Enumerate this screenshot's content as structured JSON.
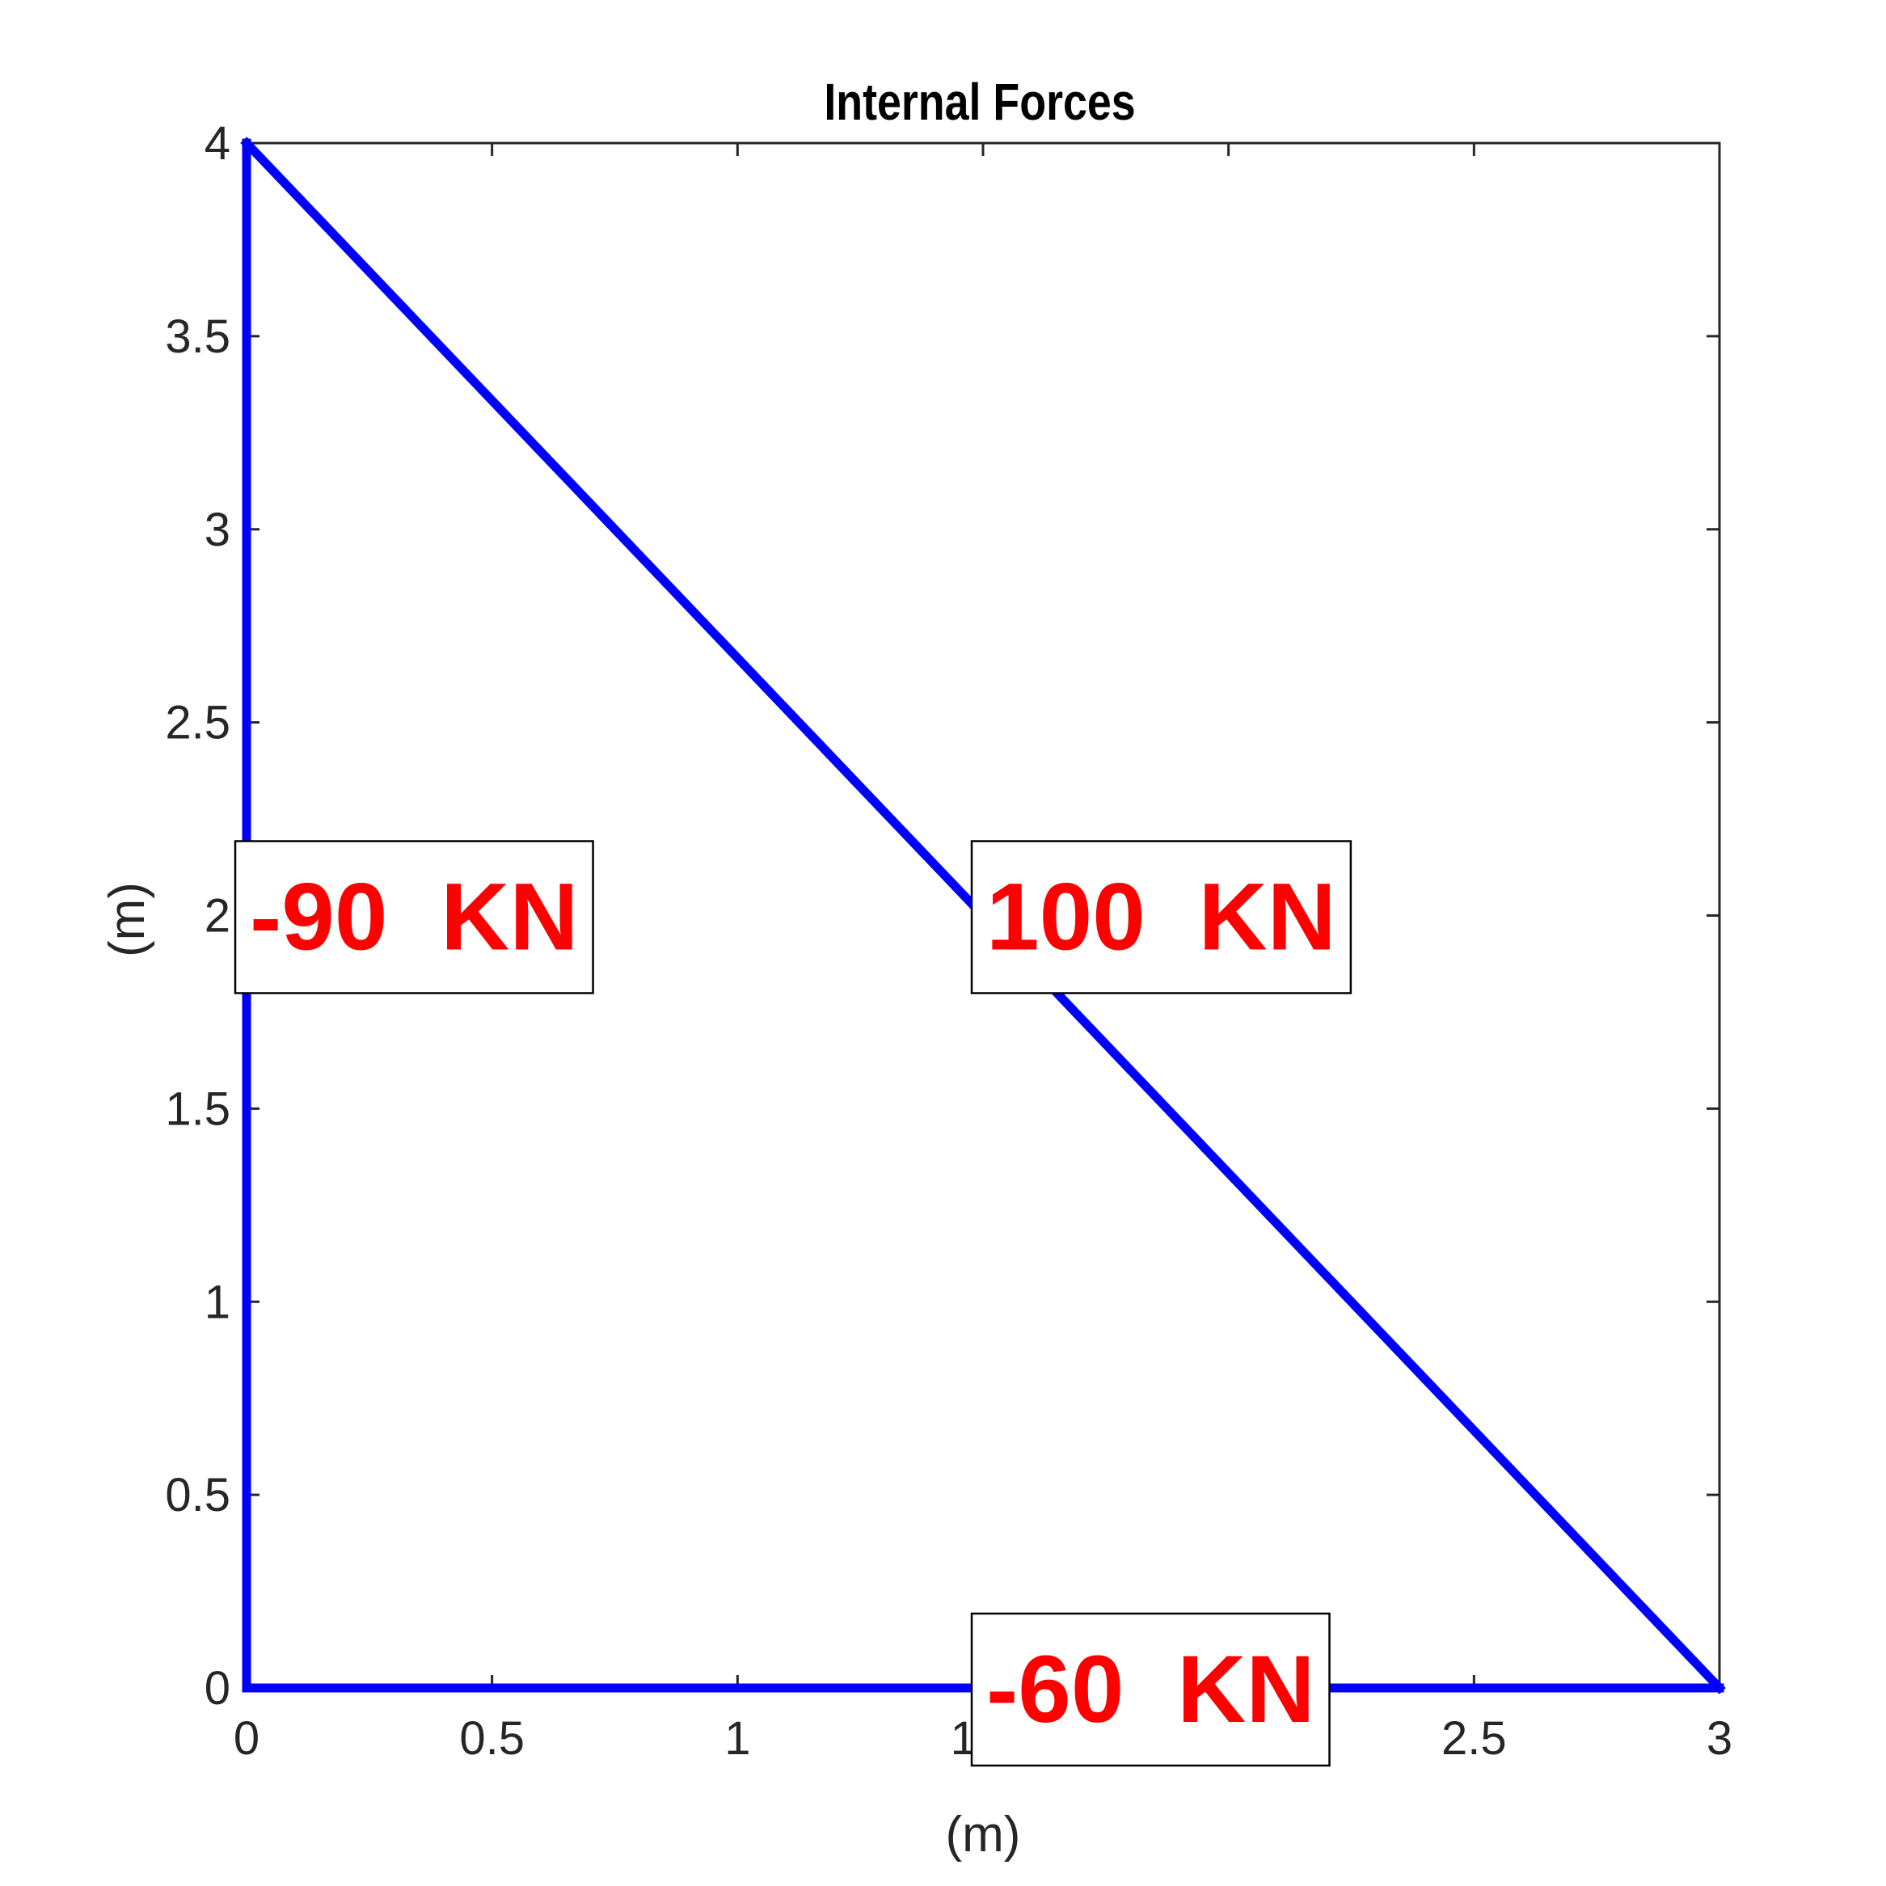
{
  "chart_data": {
    "type": "line",
    "title": "Internal Forces",
    "xlabel": "(m)",
    "ylabel": "(m)",
    "xlim": [
      0,
      3
    ],
    "ylim": [
      0,
      4
    ],
    "xticks": [
      0,
      0.5,
      1,
      1.5,
      2,
      2.5,
      3
    ],
    "xtick_labels": [
      "0",
      "0.5",
      "1",
      "1.5",
      "2",
      "2.5",
      "3"
    ],
    "yticks": [
      0,
      0.5,
      1,
      1.5,
      2,
      2.5,
      3,
      3.5,
      4
    ],
    "ytick_labels": [
      "0",
      "0.5",
      "1",
      "1.5",
      "2",
      "2.5",
      "3",
      "3.5",
      "4"
    ],
    "grid": false,
    "members": [
      {
        "x": [
          0,
          0
        ],
        "y": [
          0,
          4
        ]
      },
      {
        "x": [
          0,
          3
        ],
        "y": [
          4,
          0
        ]
      },
      {
        "x": [
          0,
          3
        ],
        "y": [
          0,
          0
        ]
      }
    ],
    "annotations": [
      {
        "text": "-90  KN",
        "x": 0,
        "y": 2
      },
      {
        "text": "100  KN",
        "x": 1.5,
        "y": 2
      },
      {
        "text": "-60  KN",
        "x": 1.5,
        "y": 0
      }
    ],
    "colors": {
      "member": "#0000ff",
      "annotation": "#ff0000"
    }
  }
}
